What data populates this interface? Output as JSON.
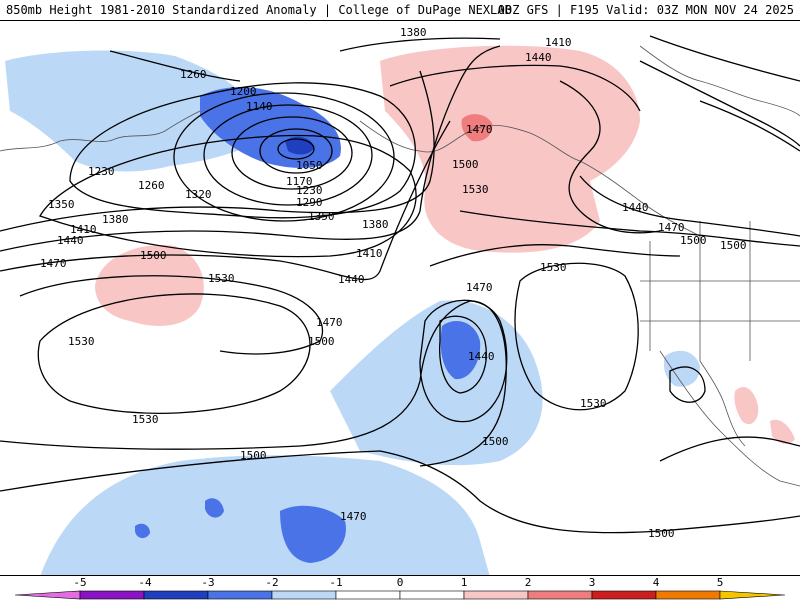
{
  "title": {
    "left": "850mb Height 1981-2010 Standardized Anomaly | College of DuPage NEXLAB",
    "right": "00Z GFS | F195 Valid: 03Z MON NOV 24 2025"
  },
  "colors": {
    "neg5": "#e46be0",
    "neg4": "#8a13c4",
    "neg3": "#1f3fbf",
    "neg2": "#4a73e8",
    "neg1": "#bcd8f7",
    "zero": "#ffffff",
    "pos1": "#f9c6c6",
    "pos2": "#f07d7d",
    "pos3": "#cc1e1e",
    "pos4": "#f07a00",
    "pos5": "#f5c500"
  },
  "contour_labels": [
    "1380",
    "1410",
    "1440",
    "1260",
    "1200",
    "1140",
    "1230",
    "1050",
    "1170",
    "1230",
    "1290",
    "1320",
    "1260",
    "1350",
    "1380",
    "1410",
    "1440",
    "1470",
    "1350",
    "1380",
    "1410",
    "1440",
    "1470",
    "1500",
    "1500",
    "1530",
    "1470",
    "1440",
    "1500",
    "1500",
    "1530",
    "1470",
    "1500",
    "1530",
    "1530",
    "1530",
    "1500",
    "1470",
    "1500",
    "1530",
    "1470",
    "1500",
    "1440",
    "1470"
  ],
  "colorbar": {
    "ticks": [
      "-5",
      "-4",
      "-3",
      "-2",
      "-1",
      "0",
      "1",
      "2",
      "3",
      "4",
      "5"
    ]
  }
}
